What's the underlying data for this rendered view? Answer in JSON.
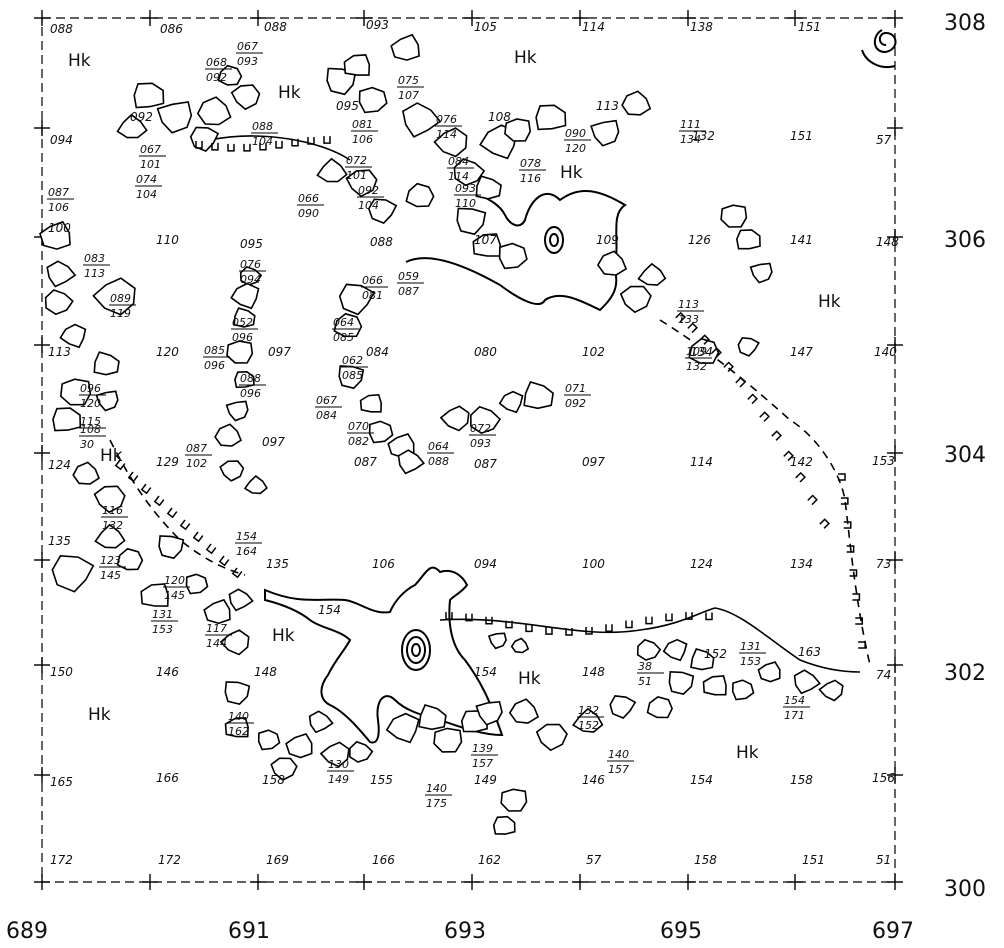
{
  "axes": {
    "easting_labels": [
      "689",
      "691",
      "693",
      "695",
      "697"
    ],
    "northing_labels": [
      "308",
      "306",
      "304",
      "302",
      "300"
    ]
  },
  "spot_heights": [
    "088",
    "086",
    "088",
    "093",
    "105",
    "114",
    "138",
    "151",
    "094",
    "57",
    "100",
    "148",
    "113",
    "140",
    "124",
    "153",
    "135",
    "73",
    "150",
    "74",
    "165",
    "156",
    "172",
    "172",
    "169",
    "166",
    "162",
    "57",
    "158",
    "151",
    "51",
    "110",
    "095",
    "088",
    "107",
    "109",
    "126",
    "141",
    "120",
    "097",
    "084",
    "080",
    "102",
    "134",
    "147",
    "129",
    "087",
    "087",
    "097",
    "114",
    "142",
    "106",
    "094",
    "100",
    "124",
    "134",
    "135",
    "146",
    "148",
    "154",
    "148",
    "163",
    "166",
    "158",
    "155",
    "149",
    "146",
    "154",
    "158",
    "132",
    "151",
    "095",
    "108",
    "113",
    "092"
  ],
  "fractions": [
    {
      "t": "068",
      "b": "092"
    },
    {
      "t": "067",
      "b": "093"
    },
    {
      "t": "075",
      "b": "107"
    },
    {
      "t": "088",
      "b": "104"
    },
    {
      "t": "081",
      "b": "106"
    },
    {
      "t": "076",
      "b": "114"
    },
    {
      "t": "090",
      "b": "120"
    },
    {
      "t": "111",
      "b": "134"
    },
    {
      "t": "067",
      "b": "101"
    },
    {
      "t": "072",
      "b": "101"
    },
    {
      "t": "084",
      "b": "114"
    },
    {
      "t": "078",
      "b": "116"
    },
    {
      "t": "074",
      "b": "104"
    },
    {
      "t": "087",
      "b": "106"
    },
    {
      "t": "092",
      "b": "104"
    },
    {
      "t": "093",
      "b": "110"
    },
    {
      "t": "066",
      "b": "090"
    },
    {
      "t": "083",
      "b": "113"
    },
    {
      "t": "076",
      "b": "094"
    },
    {
      "t": "066",
      "b": "081"
    },
    {
      "t": "059",
      "b": "087"
    },
    {
      "t": "113",
      "b": "133"
    },
    {
      "t": "089",
      "b": "119"
    },
    {
      "t": "052",
      "b": "096"
    },
    {
      "t": "064",
      "b": "085"
    },
    {
      "t": "085",
      "b": "096"
    },
    {
      "t": "062",
      "b": "085"
    },
    {
      "t": "088",
      "b": "096"
    },
    {
      "t": "109",
      "b": "132"
    },
    {
      "t": "096",
      "b": "120"
    },
    {
      "t": "071",
      "b": "092"
    },
    {
      "t": "067",
      "b": "084"
    },
    {
      "t": "115",
      "b": ""
    },
    {
      "t": "108",
      "b": "30"
    },
    {
      "t": "070",
      "b": "082"
    },
    {
      "t": "072",
      "b": "093"
    },
    {
      "t": "087",
      "b": "102"
    },
    {
      "t": "064",
      "b": "088"
    },
    {
      "t": "116",
      "b": "132"
    },
    {
      "t": "154",
      "b": "164"
    },
    {
      "t": "123",
      "b": "145"
    },
    {
      "t": "120",
      "b": "145"
    },
    {
      "t": "131",
      "b": "153"
    },
    {
      "t": "117",
      "b": "144"
    },
    {
      "t": "38",
      "b": "51"
    },
    {
      "t": "131",
      "b": "153"
    },
    {
      "t": "154",
      "b": "171"
    },
    {
      "t": "140",
      "b": "162"
    },
    {
      "t": "132",
      "b": "152"
    },
    {
      "t": "140",
      "b": "157"
    },
    {
      "t": "139",
      "b": "157"
    },
    {
      "t": "130",
      "b": "149"
    },
    {
      "t": "140",
      "b": "175"
    }
  ],
  "loose_labels": [
    "097",
    "154",
    "152"
  ],
  "hk_labels": [
    "Hk",
    "Hk",
    "Hk",
    "Hk",
    "Hk",
    "Hk",
    "Hk",
    "Hk",
    "Hk",
    "Hk"
  ]
}
